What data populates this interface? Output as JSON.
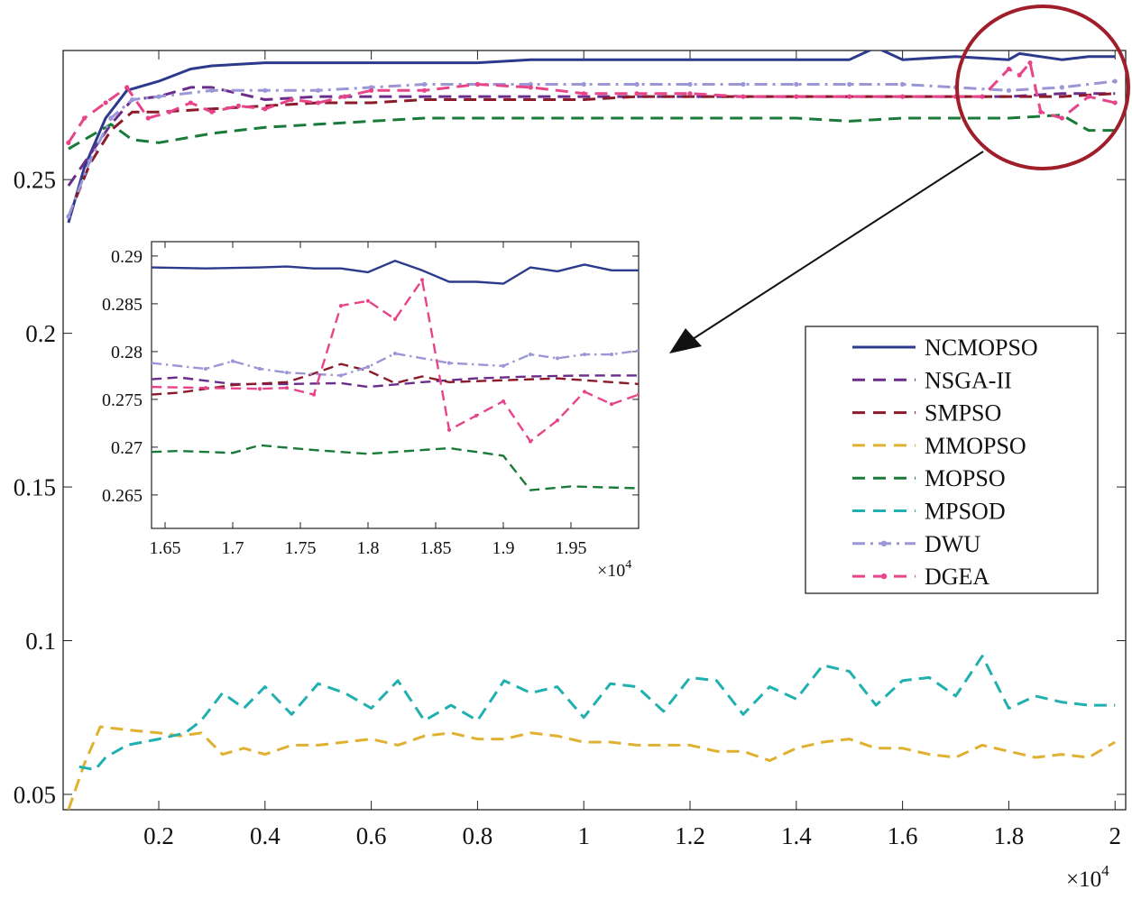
{
  "chart_data": {
    "type": "line",
    "x_exponent_label": "×10",
    "x_exponent_power": "4",
    "xlim": [
      0.02,
      2.02
    ],
    "ylim": [
      0.045,
      0.292
    ],
    "x_ticks": [
      0.2,
      0.4,
      0.6,
      0.8,
      1,
      1.2,
      1.4,
      1.6,
      1.8,
      2
    ],
    "x_tick_labels": [
      "0.2",
      "0.4",
      "0.6",
      "0.8",
      "1",
      "1.2",
      "1.4",
      "1.6",
      "1.8",
      "2"
    ],
    "y_ticks": [
      0.05,
      0.1,
      0.15,
      0.2,
      0.25
    ],
    "y_tick_labels": [
      "0.05",
      "0.1",
      "0.15",
      "0.2",
      "0.25"
    ],
    "legend_position": "center-right",
    "series": [
      {
        "name": "NCMOPSO",
        "color": "#2b3a8c",
        "style": "solid",
        "x": [
          0.03,
          0.06,
          0.1,
          0.14,
          0.2,
          0.26,
          0.3,
          0.4,
          0.5,
          0.6,
          0.7,
          0.8,
          0.9,
          1.0,
          1.1,
          1.2,
          1.3,
          1.4,
          1.5,
          1.55,
          1.6,
          1.7,
          1.8,
          1.82,
          1.9,
          1.95,
          2.0
        ],
        "y": [
          0.236,
          0.254,
          0.27,
          0.279,
          0.282,
          0.286,
          0.287,
          0.288,
          0.288,
          0.288,
          0.288,
          0.288,
          0.289,
          0.289,
          0.289,
          0.289,
          0.289,
          0.289,
          0.289,
          0.293,
          0.289,
          0.29,
          0.289,
          0.291,
          0.289,
          0.29,
          0.29
        ]
      },
      {
        "name": "NSGA-II",
        "color": "#6b2d8a",
        "style": "dashed",
        "x": [
          0.03,
          0.07,
          0.11,
          0.15,
          0.2,
          0.26,
          0.3,
          0.4,
          0.5,
          0.6,
          0.7,
          0.8,
          0.9,
          1.0,
          1.1,
          1.2,
          1.3,
          1.4,
          1.5,
          1.6,
          1.7,
          1.8,
          1.9,
          2.0
        ],
        "y": [
          0.248,
          0.258,
          0.268,
          0.276,
          0.277,
          0.28,
          0.28,
          0.276,
          0.277,
          0.277,
          0.277,
          0.277,
          0.277,
          0.277,
          0.277,
          0.277,
          0.277,
          0.277,
          0.277,
          0.277,
          0.277,
          0.277,
          0.278,
          0.278
        ]
      },
      {
        "name": "SMPSO",
        "color": "#8b1a2b",
        "style": "dashed",
        "x": [
          0.03,
          0.07,
          0.11,
          0.15,
          0.2,
          0.3,
          0.4,
          0.5,
          0.6,
          0.7,
          0.8,
          0.9,
          1.0,
          1.1,
          1.2,
          1.3,
          1.4,
          1.5,
          1.6,
          1.7,
          1.8,
          1.9,
          2.0
        ],
        "y": [
          0.238,
          0.255,
          0.266,
          0.272,
          0.272,
          0.273,
          0.274,
          0.275,
          0.275,
          0.276,
          0.276,
          0.276,
          0.276,
          0.277,
          0.277,
          0.277,
          0.277,
          0.277,
          0.277,
          0.277,
          0.277,
          0.277,
          0.278
        ]
      },
      {
        "name": "MMOPSO",
        "color": "#e0b030",
        "style": "dashed",
        "x": [
          0.03,
          0.06,
          0.09,
          0.14,
          0.2,
          0.24,
          0.28,
          0.32,
          0.36,
          0.4,
          0.45,
          0.5,
          0.55,
          0.6,
          0.65,
          0.7,
          0.75,
          0.8,
          0.85,
          0.9,
          0.95,
          1.0,
          1.05,
          1.1,
          1.15,
          1.2,
          1.25,
          1.3,
          1.35,
          1.4,
          1.45,
          1.5,
          1.55,
          1.6,
          1.65,
          1.7,
          1.75,
          1.8,
          1.85,
          1.9,
          1.95,
          2.0
        ],
        "y": [
          0.045,
          0.06,
          0.072,
          0.071,
          0.07,
          0.069,
          0.07,
          0.063,
          0.065,
          0.063,
          0.066,
          0.066,
          0.067,
          0.068,
          0.066,
          0.069,
          0.07,
          0.068,
          0.068,
          0.07,
          0.069,
          0.067,
          0.067,
          0.066,
          0.066,
          0.066,
          0.064,
          0.064,
          0.061,
          0.065,
          0.067,
          0.068,
          0.065,
          0.065,
          0.063,
          0.062,
          0.066,
          0.064,
          0.062,
          0.063,
          0.062,
          0.067
        ]
      },
      {
        "name": "MOPSO",
        "color": "#1a7a3a",
        "style": "dashed",
        "x": [
          0.03,
          0.07,
          0.11,
          0.15,
          0.2,
          0.3,
          0.4,
          0.5,
          0.6,
          0.7,
          0.8,
          0.9,
          1.0,
          1.1,
          1.2,
          1.3,
          1.4,
          1.5,
          1.6,
          1.7,
          1.8,
          1.9,
          1.95,
          2.0
        ],
        "y": [
          0.26,
          0.264,
          0.268,
          0.263,
          0.262,
          0.265,
          0.267,
          0.268,
          0.269,
          0.27,
          0.27,
          0.27,
          0.27,
          0.27,
          0.27,
          0.27,
          0.27,
          0.269,
          0.27,
          0.27,
          0.27,
          0.271,
          0.266,
          0.266
        ]
      },
      {
        "name": "MPSOD",
        "color": "#20b0b0",
        "style": "dashed",
        "x": [
          0.05,
          0.08,
          0.1,
          0.14,
          0.2,
          0.25,
          0.28,
          0.32,
          0.36,
          0.4,
          0.45,
          0.5,
          0.55,
          0.6,
          0.65,
          0.7,
          0.75,
          0.8,
          0.85,
          0.9,
          0.95,
          1.0,
          1.05,
          1.1,
          1.15,
          1.2,
          1.25,
          1.3,
          1.35,
          1.4,
          1.45,
          1.5,
          1.55,
          1.6,
          1.65,
          1.7,
          1.75,
          1.8,
          1.85,
          1.9,
          1.95,
          2.0
        ],
        "y": [
          0.059,
          0.058,
          0.062,
          0.066,
          0.068,
          0.07,
          0.074,
          0.083,
          0.078,
          0.085,
          0.076,
          0.086,
          0.083,
          0.078,
          0.087,
          0.074,
          0.079,
          0.074,
          0.087,
          0.083,
          0.085,
          0.075,
          0.086,
          0.085,
          0.077,
          0.088,
          0.087,
          0.076,
          0.085,
          0.081,
          0.092,
          0.09,
          0.079,
          0.087,
          0.088,
          0.082,
          0.095,
          0.078,
          0.082,
          0.08,
          0.079,
          0.079
        ]
      },
      {
        "name": "DWU",
        "color": "#9b96d6",
        "style": "dash-dot-marker",
        "x": [
          0.03,
          0.07,
          0.11,
          0.15,
          0.2,
          0.3,
          0.4,
          0.5,
          0.6,
          0.7,
          0.8,
          0.9,
          1.0,
          1.1,
          1.2,
          1.3,
          1.4,
          1.5,
          1.6,
          1.7,
          1.8,
          1.9,
          2.0
        ],
        "y": [
          0.238,
          0.256,
          0.27,
          0.276,
          0.277,
          0.279,
          0.279,
          0.279,
          0.28,
          0.281,
          0.281,
          0.281,
          0.281,
          0.281,
          0.281,
          0.281,
          0.281,
          0.281,
          0.281,
          0.28,
          0.279,
          0.28,
          0.282
        ]
      },
      {
        "name": "DGEA",
        "color": "#e8448a",
        "style": "dashed-marker",
        "x": [
          0.03,
          0.06,
          0.1,
          0.14,
          0.18,
          0.22,
          0.26,
          0.3,
          0.35,
          0.4,
          0.45,
          0.5,
          0.55,
          0.6,
          0.7,
          0.8,
          0.9,
          1.0,
          1.1,
          1.2,
          1.3,
          1.4,
          1.5,
          1.6,
          1.7,
          1.75,
          1.8,
          1.82,
          1.84,
          1.86,
          1.9,
          1.95,
          2.0
        ],
        "y": [
          0.262,
          0.27,
          0.275,
          0.28,
          0.27,
          0.272,
          0.275,
          0.272,
          0.274,
          0.273,
          0.276,
          0.275,
          0.277,
          0.279,
          0.279,
          0.281,
          0.28,
          0.278,
          0.278,
          0.278,
          0.277,
          0.277,
          0.277,
          0.277,
          0.277,
          0.277,
          0.286,
          0.284,
          0.288,
          0.272,
          0.27,
          0.277,
          0.275
        ]
      }
    ],
    "inset": {
      "xlim": [
        1.64,
        2.0
      ],
      "ylim": [
        0.2615,
        0.2915
      ],
      "x_ticks": [
        1.65,
        1.7,
        1.75,
        1.8,
        1.85,
        1.9,
        1.95
      ],
      "x_tick_labels": [
        "1.65",
        "1.7",
        "1.75",
        "1.8",
        "1.85",
        "1.9",
        "1.95"
      ],
      "y_ticks": [
        0.265,
        0.27,
        0.275,
        0.28,
        0.285,
        0.29
      ],
      "y_tick_labels": [
        "0.265",
        "0.27",
        "0.275",
        "0.28",
        "0.285",
        "0.29"
      ],
      "x_exponent_label": "×10",
      "x_exponent_power": "4",
      "series": [
        {
          "name": "NCMOPSO",
          "x": [
            1.64,
            1.68,
            1.72,
            1.74,
            1.76,
            1.78,
            1.8,
            1.82,
            1.84,
            1.86,
            1.88,
            1.9,
            1.92,
            1.94,
            1.96,
            1.98,
            2.0
          ],
          "y": [
            0.2888,
            0.2887,
            0.2888,
            0.2889,
            0.2887,
            0.2887,
            0.2883,
            0.2895,
            0.2885,
            0.2873,
            0.2873,
            0.2871,
            0.2888,
            0.2884,
            0.2891,
            0.2885,
            0.2885
          ]
        },
        {
          "name": "NSGA-II",
          "x": [
            1.64,
            1.66,
            1.7,
            1.74,
            1.78,
            1.8,
            1.84,
            1.88,
            1.92,
            1.96,
            2.0
          ],
          "y": [
            0.2771,
            0.2773,
            0.2766,
            0.2766,
            0.2767,
            0.2763,
            0.2768,
            0.2772,
            0.2774,
            0.2775,
            0.2775
          ]
        },
        {
          "name": "SMPSO",
          "x": [
            1.64,
            1.66,
            1.7,
            1.74,
            1.76,
            1.78,
            1.8,
            1.82,
            1.84,
            1.86,
            1.9,
            1.94,
            1.98,
            2.0
          ],
          "y": [
            0.2755,
            0.2757,
            0.2765,
            0.2768,
            0.2777,
            0.2787,
            0.278,
            0.2767,
            0.2774,
            0.2768,
            0.277,
            0.2772,
            0.2768,
            0.2766
          ]
        },
        {
          "name": "MOPSO",
          "x": [
            1.64,
            1.66,
            1.7,
            1.72,
            1.76,
            1.8,
            1.84,
            1.86,
            1.9,
            1.92,
            1.95,
            2.0
          ],
          "y": [
            0.2695,
            0.2696,
            0.2694,
            0.2702,
            0.2697,
            0.2693,
            0.2697,
            0.2699,
            0.2691,
            0.2655,
            0.2659,
            0.2657
          ]
        },
        {
          "name": "DWU",
          "x": [
            1.64,
            1.68,
            1.7,
            1.72,
            1.74,
            1.78,
            1.8,
            1.82,
            1.86,
            1.9,
            1.92,
            1.94,
            1.96,
            1.98,
            2.0
          ],
          "y": [
            0.2788,
            0.2782,
            0.279,
            0.2782,
            0.2778,
            0.2775,
            0.2784,
            0.2798,
            0.2788,
            0.2785,
            0.2797,
            0.2793,
            0.2797,
            0.2797,
            0.2801
          ]
        },
        {
          "name": "DGEA",
          "x": [
            1.64,
            1.68,
            1.72,
            1.74,
            1.76,
            1.78,
            1.8,
            1.82,
            1.84,
            1.86,
            1.88,
            1.9,
            1.92,
            1.94,
            1.96,
            1.98,
            2.0
          ],
          "y": [
            0.2763,
            0.2762,
            0.2761,
            0.2762,
            0.2755,
            0.2848,
            0.2853,
            0.2834,
            0.2875,
            0.2718,
            0.2733,
            0.2748,
            0.2706,
            0.2728,
            0.2758,
            0.2745,
            0.2755
          ]
        }
      ]
    }
  }
}
